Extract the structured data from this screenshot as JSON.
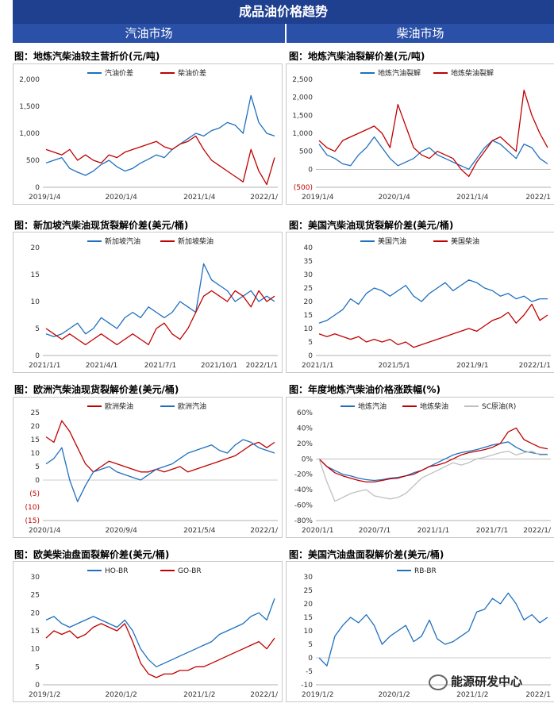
{
  "header": {
    "title": "成品油价格趋势",
    "left_section": "汽油市场",
    "right_section": "柴油市场"
  },
  "colors": {
    "blue": "#1f6fbf",
    "red": "#c00000",
    "gray": "#bfbfbf",
    "header_dark": "#1f3f8f",
    "header_light": "#2a50a8",
    "negative_label": "#c00000"
  },
  "watermark": "能源研发中心",
  "chart_data": [
    {
      "id": "c1",
      "type": "line",
      "title": "图：地炼汽柴油较主营折价(元/吨)",
      "yticks": [
        "2,000",
        "1,500",
        "1,000",
        "500",
        "0"
      ],
      "ylim": [
        0,
        2000
      ],
      "xticks": [
        "2019/1/4",
        "2020/1/4",
        "2021/1/4",
        "2022/1/"
      ],
      "legend_position": "top",
      "series": [
        {
          "name": "汽油价差",
          "color": "#1f6fbf",
          "values": [
            450,
            500,
            550,
            350,
            280,
            220,
            300,
            420,
            500,
            380,
            300,
            350,
            450,
            520,
            600,
            550,
            700,
            800,
            900,
            1000,
            950,
            1050,
            1100,
            1200,
            1150,
            1000,
            1700,
            1200,
            1000,
            950
          ]
        },
        {
          "name": "柴油价差",
          "color": "#c00000",
          "values": [
            700,
            650,
            600,
            700,
            500,
            600,
            500,
            450,
            600,
            550,
            650,
            700,
            750,
            800,
            850,
            750,
            700,
            800,
            850,
            950,
            700,
            500,
            400,
            300,
            200,
            100,
            700,
            300,
            50,
            550
          ]
        }
      ]
    },
    {
      "id": "c2",
      "type": "line",
      "title": "图：地炼汽柴油裂解价差(元/吨)",
      "yticks": [
        "2,500",
        "2,000",
        "1,500",
        "1,000",
        "500",
        "0",
        "(500)"
      ],
      "ylim": [
        -500,
        2500
      ],
      "xticks": [
        "2019/1/4",
        "2020/1/4",
        "2021/1/4",
        "2022/1"
      ],
      "legend_position": "top",
      "series": [
        {
          "name": "地炼汽油裂解",
          "color": "#1f6fbf",
          "values": [
            700,
            400,
            300,
            150,
            100,
            400,
            600,
            900,
            600,
            300,
            100,
            200,
            300,
            500,
            600,
            400,
            300,
            200,
            100,
            0,
            300,
            600,
            800,
            700,
            500,
            300,
            700,
            600,
            300,
            150
          ]
        },
        {
          "name": "地炼柴油裂解",
          "color": "#c00000",
          "values": [
            800,
            600,
            500,
            800,
            900,
            1000,
            1100,
            1200,
            1000,
            600,
            1800,
            1200,
            600,
            400,
            300,
            500,
            400,
            300,
            0,
            -200,
            200,
            500,
            800,
            900,
            700,
            500,
            2200,
            1500,
            1000,
            600
          ]
        }
      ]
    },
    {
      "id": "c3",
      "type": "line",
      "title": "图：新加坡汽柴油现货裂解价差(美元/桶)",
      "yticks": [
        "20",
        "15",
        "10",
        "5",
        "0"
      ],
      "ylim": [
        0,
        20
      ],
      "xticks": [
        "2021/1/1",
        "2021/4/1",
        "2021/7/1",
        "2021/10/1",
        "2022/1/1"
      ],
      "legend_position": "top",
      "series": [
        {
          "name": "新加坡汽油",
          "color": "#1f6fbf",
          "values": [
            4,
            3.5,
            4,
            5,
            6,
            4,
            5,
            7,
            6,
            5,
            7,
            8,
            7,
            9,
            8,
            7,
            8,
            10,
            9,
            8,
            17,
            14,
            13,
            12,
            10,
            11,
            12,
            10,
            11,
            10
          ]
        },
        {
          "name": "新加坡柴油",
          "color": "#c00000",
          "values": [
            5,
            4,
            3,
            4,
            3,
            2,
            3,
            4,
            3,
            2,
            3,
            4,
            3,
            2,
            5,
            6,
            4,
            3,
            5,
            8,
            11,
            12,
            11,
            10,
            12,
            11,
            9,
            12,
            10,
            11
          ]
        }
      ]
    },
    {
      "id": "c4",
      "type": "line",
      "title": "图：美国汽柴油现货裂解价差(美元/桶)",
      "yticks": [
        "40",
        "35",
        "30",
        "25",
        "20",
        "15",
        "10",
        "5",
        "0"
      ],
      "ylim": [
        0,
        40
      ],
      "xticks": [
        "2021/1/1",
        "2021/5/1",
        "2021/9/1",
        "2022/1/1"
      ],
      "legend_position": "top",
      "series": [
        {
          "name": "美国汽油",
          "color": "#1f6fbf",
          "values": [
            12,
            13,
            15,
            17,
            21,
            19,
            23,
            25,
            24,
            22,
            24,
            26,
            22,
            20,
            23,
            25,
            27,
            24,
            26,
            28,
            27,
            25,
            24,
            22,
            23,
            21,
            22,
            20,
            21,
            21
          ]
        },
        {
          "name": "美国柴油",
          "color": "#c00000",
          "values": [
            8,
            7,
            8,
            7,
            6,
            7,
            5,
            6,
            5,
            6,
            4,
            5,
            3,
            4,
            5,
            6,
            7,
            8,
            9,
            10,
            9,
            11,
            13,
            14,
            16,
            12,
            15,
            19,
            13,
            15
          ]
        }
      ]
    },
    {
      "id": "c5",
      "type": "line",
      "title": "图：欧洲汽柴油现货裂解价差(美元/桶)",
      "yticks": [
        "25",
        "20",
        "15",
        "10",
        "5",
        "0",
        "(5)",
        "(10)",
        "(15)"
      ],
      "ylim": [
        -15,
        25
      ],
      "xticks": [
        "2020/1/4",
        "2020/9/4",
        "2021/5/4",
        "2022/1/"
      ],
      "legend_position": "top",
      "series": [
        {
          "name": "欧洲柴油",
          "color": "#c00000",
          "values": [
            16,
            14,
            22,
            18,
            12,
            6,
            3,
            5,
            7,
            6,
            5,
            4,
            3,
            3,
            4,
            3,
            4,
            5,
            3,
            4,
            5,
            6,
            7,
            8,
            9,
            11,
            13,
            14,
            12,
            14
          ]
        },
        {
          "name": "欧洲汽油",
          "color": "#1f6fbf",
          "values": [
            6,
            8,
            12,
            0,
            -8,
            -2,
            3,
            4,
            5,
            3,
            2,
            1,
            0,
            2,
            4,
            5,
            6,
            8,
            10,
            11,
            12,
            13,
            11,
            10,
            13,
            15,
            14,
            12,
            11,
            10
          ]
        }
      ]
    },
    {
      "id": "c6",
      "type": "line",
      "title": "图：年度地炼汽柴油价格涨跌幅(%)",
      "yticks": [
        "60%",
        "40%",
        "20%",
        "0%",
        "-20%",
        "-40%",
        "-60%",
        "-80%"
      ],
      "ylim": [
        -80,
        60
      ],
      "xticks": [
        "2020/1/1",
        "2020/7/1",
        "2021/1/1",
        "2021/7/1",
        "2022/1/"
      ],
      "legend_position": "top",
      "series": [
        {
          "name": "地炼汽油",
          "color": "#1f6fbf",
          "values": [
            0,
            -10,
            -15,
            -20,
            -22,
            -25,
            -27,
            -28,
            -27,
            -25,
            -24,
            -22,
            -18,
            -15,
            -10,
            -5,
            0,
            5,
            8,
            10,
            12,
            15,
            18,
            20,
            22,
            15,
            10,
            8,
            6,
            6
          ]
        },
        {
          "name": "地炼柴油",
          "color": "#c00000",
          "values": [
            0,
            -10,
            -18,
            -22,
            -25,
            -28,
            -30,
            -30,
            -28,
            -26,
            -25,
            -22,
            -20,
            -15,
            -10,
            -8,
            -5,
            0,
            5,
            8,
            10,
            12,
            15,
            20,
            35,
            40,
            25,
            20,
            15,
            13
          ]
        },
        {
          "name": "SC原油(R)",
          "color": "#bfbfbf",
          "values": [
            0,
            -30,
            -55,
            -50,
            -45,
            -42,
            -40,
            -48,
            -50,
            -52,
            -50,
            -45,
            -35,
            -25,
            -20,
            -15,
            -10,
            -5,
            -8,
            -5,
            0,
            2,
            5,
            8,
            10,
            5,
            8,
            10,
            5,
            5
          ]
        }
      ]
    },
    {
      "id": "c7",
      "type": "line",
      "title": "图：欧美柴油盘面裂解价差(美元/桶)",
      "yticks": [
        "30",
        "25",
        "20",
        "15",
        "10",
        "5",
        "0"
      ],
      "ylim": [
        0,
        30
      ],
      "xticks": [
        "2019/1/2",
        "2020/1/2",
        "2021/1/2",
        "2022/1/"
      ],
      "legend_position": "top",
      "series": [
        {
          "name": "HO-BR",
          "color": "#1f6fbf",
          "values": [
            18,
            19,
            17,
            16,
            17,
            18,
            19,
            18,
            17,
            16,
            18,
            15,
            10,
            7,
            5,
            6,
            7,
            8,
            9,
            10,
            11,
            12,
            14,
            15,
            16,
            17,
            19,
            20,
            18,
            24
          ]
        },
        {
          "name": "GO-BR",
          "color": "#c00000",
          "values": [
            13,
            15,
            14,
            15,
            13,
            14,
            16,
            17,
            16,
            15,
            17,
            12,
            6,
            3,
            2,
            3,
            3,
            4,
            4,
            5,
            5,
            6,
            7,
            8,
            9,
            10,
            11,
            12,
            10,
            13
          ]
        }
      ]
    },
    {
      "id": "c8",
      "type": "line",
      "title": "图：美国汽油盘面裂解价差(美元/桶)",
      "yticks": [
        "30",
        "25",
        "20",
        "15",
        "10",
        "5",
        "0",
        "-5",
        "-10"
      ],
      "ylim": [
        -10,
        30
      ],
      "xticks": [
        "2019/1/2",
        "2020/1/2",
        "2021/1/2",
        "2022/1"
      ],
      "legend_position": "top",
      "series": [
        {
          "name": "RB-BR",
          "color": "#1f6fbf",
          "values": [
            0,
            -3,
            8,
            12,
            15,
            13,
            16,
            12,
            5,
            8,
            10,
            12,
            6,
            8,
            14,
            7,
            5,
            6,
            8,
            10,
            17,
            18,
            22,
            20,
            24,
            20,
            14,
            16,
            13,
            15
          ]
        }
      ]
    }
  ]
}
